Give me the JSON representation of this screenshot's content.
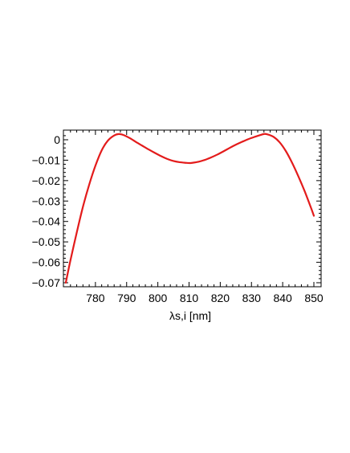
{
  "chart_data": {
    "type": "line",
    "title": "",
    "xlabel": "λs,i [nm]",
    "ylabel": "",
    "xlim": [
      770,
      850
    ],
    "ylim": [
      -0.0705,
      0.0045
    ],
    "x_ticks": [
      780,
      790,
      800,
      810,
      820,
      830,
      840,
      850
    ],
    "x_tick_labels": [
      "780",
      "790",
      "800",
      "810",
      "820",
      "830",
      "840",
      "850"
    ],
    "y_ticks": [
      0,
      -0.01,
      -0.02,
      -0.03,
      -0.04,
      -0.05,
      -0.06,
      -0.07
    ],
    "y_tick_labels": [
      "0",
      "−0.01",
      "−0.02",
      "−0.03",
      "−0.04",
      "−0.05",
      "−0.06",
      "−0.07"
    ],
    "grid": false,
    "series": [
      {
        "color": "#e31b1b",
        "x": [
          770.5,
          772,
          774,
          776,
          778,
          780,
          782,
          784,
          786,
          787.5,
          789,
          791,
          793,
          795,
          797,
          799,
          801,
          803,
          805,
          807,
          809,
          810,
          811,
          813,
          815,
          817,
          819,
          821,
          823,
          825,
          827,
          829,
          831,
          833,
          834,
          835,
          837,
          839,
          841,
          843,
          845,
          847,
          849,
          850
        ],
        "y": [
          -0.07,
          -0.059,
          -0.0455,
          -0.0328,
          -0.022,
          -0.0127,
          -0.0052,
          -0.0004,
          0.0021,
          0.0028,
          0.0023,
          0.0008,
          -0.0011,
          -0.0029,
          -0.0047,
          -0.0064,
          -0.008,
          -0.0094,
          -0.0104,
          -0.011,
          -0.0113,
          -0.0114,
          -0.0113,
          -0.0108,
          -0.0099,
          -0.0087,
          -0.0073,
          -0.0057,
          -0.004,
          -0.0024,
          -0.001,
          0.0003,
          0.0014,
          0.0024,
          0.0028,
          0.0027,
          0.0015,
          -0.0012,
          -0.0055,
          -0.0112,
          -0.0178,
          -0.025,
          -0.033,
          -0.0372
        ]
      }
    ]
  }
}
